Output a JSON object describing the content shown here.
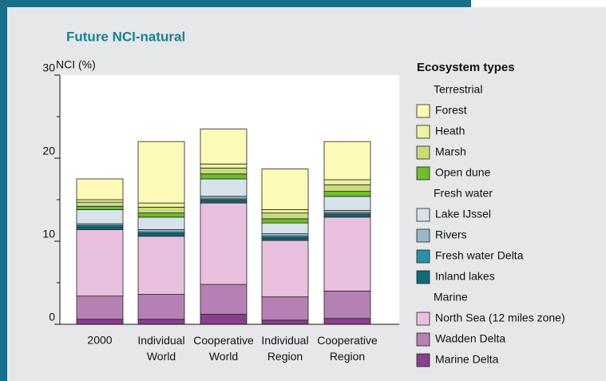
{
  "chart_data": {
    "type": "stacked_bar",
    "title": "Future NCI-natural",
    "y_label": "NCI (%)",
    "legend_title": "Ecosystem types",
    "categories": [
      "2000",
      "Individual World",
      "Cooperative World",
      "Individual Region",
      "Cooperative Region"
    ],
    "ylim": [
      0,
      30
    ],
    "yticks": [
      0,
      10,
      20,
      30
    ],
    "minor_yticks": [
      5,
      15,
      25
    ],
    "legend_groups": [
      {
        "label": "Terrestrial",
        "series": [
          0,
          1,
          2,
          3
        ]
      },
      {
        "label": "Fresh water",
        "series": [
          4,
          5,
          6,
          7
        ]
      },
      {
        "label": "Marine",
        "series": [
          8,
          9,
          10
        ]
      }
    ],
    "series": [
      {
        "name": "Forest",
        "color": "#fdf9b6",
        "values": [
          2.5,
          7.4,
          4.2,
          4.9,
          4.6
        ]
      },
      {
        "name": "Heath",
        "color": "#eef3a2",
        "values": [
          0.3,
          0.5,
          0.5,
          0.4,
          0.6
        ]
      },
      {
        "name": "Marsh",
        "color": "#c8dc7a",
        "values": [
          0.5,
          0.7,
          0.7,
          0.7,
          0.8
        ]
      },
      {
        "name": "Open dune",
        "color": "#6cbf2c",
        "values": [
          0.4,
          0.5,
          0.6,
          0.5,
          0.6
        ]
      },
      {
        "name": "Lake IJssel",
        "color": "#d6e3ea",
        "values": [
          1.7,
          1.5,
          2.1,
          1.3,
          1.7
        ]
      },
      {
        "name": "Rivers",
        "color": "#9ab8c9",
        "values": [
          0.2,
          0.3,
          0.3,
          0.3,
          0.3
        ]
      },
      {
        "name": "Fresh water Delta",
        "color": "#2a8fa8",
        "values": [
          0.2,
          0.2,
          0.2,
          0.2,
          0.2
        ]
      },
      {
        "name": "Inland lakes",
        "color": "#0d6b78",
        "values": [
          0.3,
          0.3,
          0.3,
          0.3,
          0.3
        ]
      },
      {
        "name": "North Sea (12 miles zone)",
        "color": "#e8c0dd",
        "values": [
          8.0,
          7.0,
          9.8,
          6.8,
          8.9
        ]
      },
      {
        "name": "Wadden Delta",
        "color": "#b680b5",
        "values": [
          2.8,
          3.0,
          3.6,
          2.8,
          3.3
        ]
      },
      {
        "name": "Marine Delta",
        "color": "#8a3f8f",
        "values": [
          0.6,
          0.6,
          1.2,
          0.5,
          0.7
        ]
      }
    ]
  }
}
